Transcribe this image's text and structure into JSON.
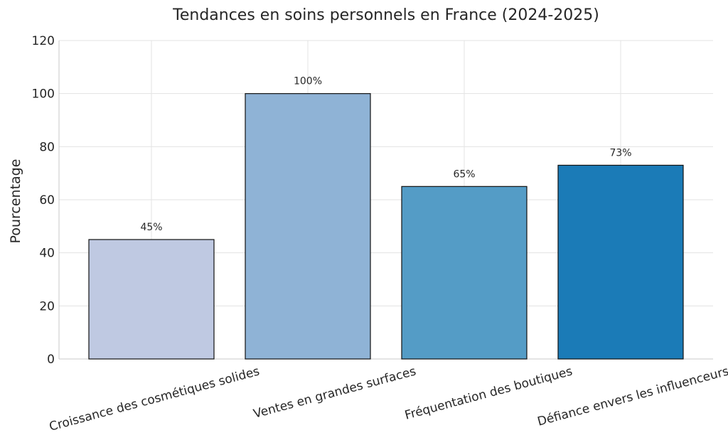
{
  "chart_data": {
    "type": "bar",
    "title": "Tendances en soins personnels en France (2024-2025)",
    "xlabel": "",
    "ylabel": "Pourcentage",
    "ylim": [
      0,
      120
    ],
    "yticks": [
      0,
      20,
      40,
      60,
      80,
      100,
      120
    ],
    "categories": [
      "Croissance des cosmétiques solides",
      "Ventes en grandes surfaces",
      "Fréquentation des boutiques",
      "Défiance envers les influenceurs"
    ],
    "values": [
      45,
      100,
      65,
      73
    ],
    "value_labels": [
      "45%",
      "100%",
      "65%",
      "73%"
    ],
    "colors": [
      "#bfc9e2",
      "#8fb3d6",
      "#549cc6",
      "#1b7bb7"
    ],
    "grid": true,
    "legend": "none"
  }
}
